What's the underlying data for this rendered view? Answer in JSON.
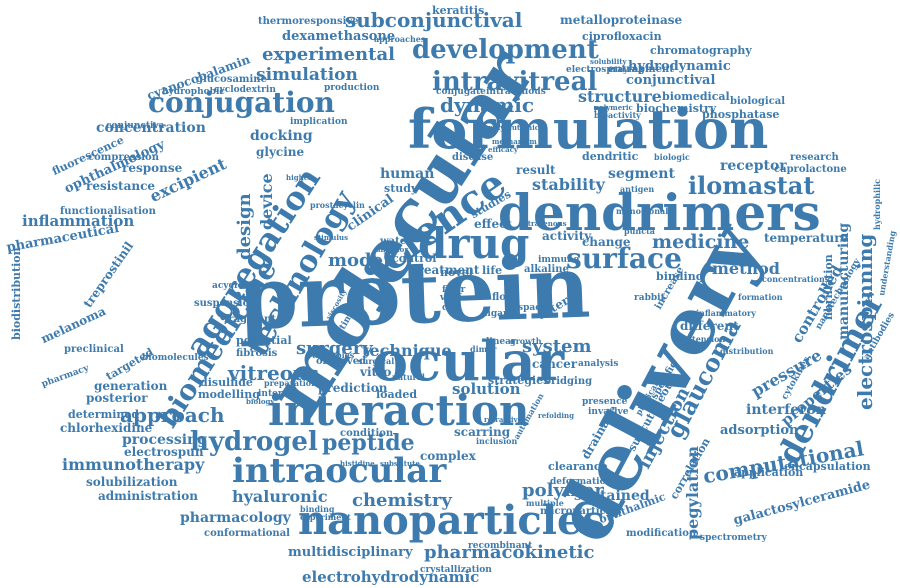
{
  "colors": {
    "word": "#3d7aad",
    "background": "#ffffff"
  },
  "words": [
    "protein",
    "delivery",
    "molecular",
    "formulation",
    "dendrimers",
    "interaction",
    "nanoparticles",
    "ocular",
    "drug",
    "science",
    "intraocular",
    "aggregation",
    "technology",
    "biomedicine",
    "dendrimer",
    "conjugation",
    "development",
    "intravitreal",
    "surface",
    "ilomastat",
    "hydrogel",
    "peptide",
    "electrospinning",
    "glaucoma",
    "computational",
    "dynamic",
    "subconjunctival",
    "experimental",
    "simulation",
    "approach",
    "vitreous",
    "surgery",
    "medicine",
    "injection",
    "pegylation",
    "polymer",
    "chemistry",
    "design",
    "device",
    "system",
    "structure",
    "stability",
    "method",
    "model",
    "pressure",
    "controlled",
    "manufacturing",
    "properties",
    "immunotherapy",
    "pharmacokinetic",
    "electrohydrodynamic",
    "hyaluronic",
    "sustained",
    "concentration",
    "inflammation",
    "excipient",
    "docking",
    "human",
    "receptor",
    "segment",
    "interferon",
    "adsorption",
    "processing",
    "solution",
    "galactosylceramide",
    "pharmacology",
    "multidisciplinary",
    "hydrodynamic",
    "conjunctival",
    "metalloproteinase",
    "thermoresponsive",
    "dexamethasone",
    "ciprofloxacin",
    "chromatography",
    "cyanocobalamin",
    "glucosamine",
    "ophthalmology",
    "pharmaceutical",
    "resistance",
    "response",
    "melanoma",
    "treprostinil",
    "biodistribution",
    "fibrillation",
    "correlation",
    "drainage",
    "cancer",
    "scarring",
    "complex",
    "clearance",
    "modification",
    "encapsulation",
    "application",
    "chlorhexidine",
    "electrospun",
    "generation",
    "posterior",
    "modelling",
    "disulfide",
    "determined",
    "solubilization",
    "administration",
    "conformational",
    "crystallization",
    "recombinant",
    "ophthalmic",
    "microparticles",
    "deformation",
    "entrapment",
    "biomedical",
    "biological",
    "phosphatase",
    "biochemistry",
    "research",
    "caprolactone",
    "temperature",
    "different",
    "binding",
    "change",
    "activity",
    "effect",
    "result",
    "studies",
    "glycine",
    "potential",
    "fibrosis",
    "fragment",
    "targeted",
    "preclinical",
    "pharmacy",
    "biomolecules",
    "suspension",
    "compression",
    "conjunctiva",
    "fluorescence",
    "functionalisation",
    "hydrophobic",
    "cyclodextrin",
    "production",
    "implication",
    "prediction",
    "interno",
    "technique",
    "vitro",
    "loaded",
    "observed",
    "condition",
    "treatment",
    "water",
    "control",
    "novel",
    "life",
    "study",
    "clinical",
    "disease",
    "acyclovir",
    "keratitis",
    "electrospraying",
    "intravenous",
    "conjugate",
    "approaches",
    "prostacyclin",
    "biologic",
    "dendritic",
    "antigen",
    "monoclonal",
    "puncta",
    "alkaline",
    "immune",
    "rabbit",
    "increase",
    "specific",
    "physical",
    "inflammatory",
    "cytokines",
    "antibodies",
    "nanotechnology",
    "hydrophilic",
    "understanding",
    "spectrometry",
    "subcutaneous",
    "bridging",
    "strategies",
    "analysis",
    "invasive",
    "presence",
    "multiple",
    "automation",
    "inclusion",
    "therapies",
    "surgical",
    "natural",
    "growth",
    "linear",
    "dimer",
    "space",
    "exter",
    "ligand",
    "flow",
    "cell",
    "vegf",
    "fiber",
    "time",
    "viscosity",
    "concentrations",
    "formation",
    "distribution",
    "refolding",
    "tension",
    "refractive",
    "binding",
    "experiment",
    "biology",
    "preparation",
    "histidine",
    "substitute",
    "bioactivity",
    "polymeric",
    "polyglutamic",
    "efficacy",
    "stimulus",
    "anterior",
    "higher",
    "mechanism",
    "solubility",
    "intravenous",
    "adhesion"
  ]
}
